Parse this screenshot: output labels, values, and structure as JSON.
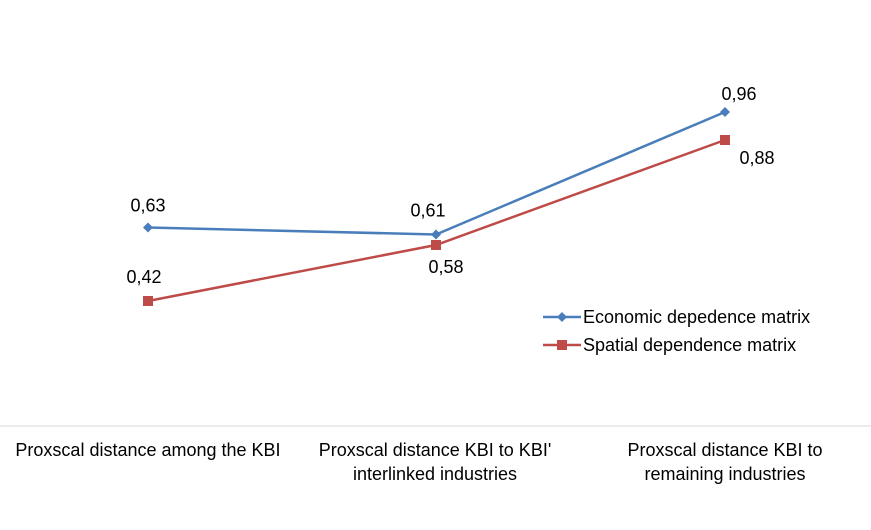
{
  "chart_data": {
    "type": "line",
    "categories": [
      "Proxscal distance among the KBI",
      "Proxscal distance KBI to KBI'\ninterlinked industries",
      "Proxscal distance KBI to\nremaining industries"
    ],
    "series": [
      {
        "name": "Economic depedence matrix",
        "values": [
          0.63,
          0.61,
          0.96
        ],
        "labels": [
          "0,63",
          "0,61",
          "0,96"
        ],
        "color": "#4A7EBB",
        "marker": "diamond"
      },
      {
        "name": "Spatial dependence matrix",
        "values": [
          0.42,
          0.58,
          0.88
        ],
        "labels": [
          "0,42",
          "0,58",
          "0,88"
        ],
        "color": "#BE4B48",
        "marker": "square"
      }
    ],
    "title": "",
    "xlabel": "",
    "ylabel": "",
    "legend_position": "right",
    "grid": false
  }
}
